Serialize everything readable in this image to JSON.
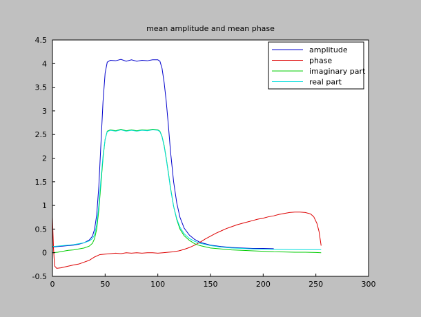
{
  "chart_data": {
    "type": "line",
    "title": "mean amplitude and mean phase",
    "xlabel": "",
    "ylabel": "",
    "xlim": [
      0,
      300
    ],
    "ylim": [
      -0.5,
      4.5
    ],
    "x_ticks": [
      0,
      50,
      100,
      150,
      200,
      250,
      300
    ],
    "y_ticks": [
      -0.5,
      0,
      0.5,
      1,
      1.5,
      2,
      2.5,
      3,
      3.5,
      4,
      4.5
    ],
    "x_tick_labels": [
      "0",
      "50",
      "100",
      "150",
      "200",
      "250",
      "300"
    ],
    "y_tick_labels": [
      "-0.5",
      "0",
      "0.5",
      "1",
      "1.5",
      "2",
      "2.5",
      "3",
      "3.5",
      "4",
      "4.5"
    ],
    "grid": false,
    "legend_position": "top-right",
    "series": [
      {
        "name": "amplitude",
        "color": "#0000cc",
        "points": [
          [
            0,
            0.12
          ],
          [
            5,
            0.13
          ],
          [
            10,
            0.14
          ],
          [
            15,
            0.15
          ],
          [
            20,
            0.16
          ],
          [
            25,
            0.18
          ],
          [
            30,
            0.21
          ],
          [
            35,
            0.27
          ],
          [
            38,
            0.35
          ],
          [
            40,
            0.5
          ],
          [
            42,
            0.8
          ],
          [
            44,
            1.4
          ],
          [
            46,
            2.3
          ],
          [
            48,
            3.2
          ],
          [
            50,
            3.8
          ],
          [
            52,
            4.03
          ],
          [
            55,
            4.07
          ],
          [
            60,
            4.06
          ],
          [
            65,
            4.09
          ],
          [
            70,
            4.05
          ],
          [
            75,
            4.08
          ],
          [
            80,
            4.05
          ],
          [
            85,
            4.07
          ],
          [
            90,
            4.06
          ],
          [
            95,
            4.08
          ],
          [
            100,
            4.08
          ],
          [
            102,
            4.05
          ],
          [
            104,
            3.9
          ],
          [
            106,
            3.6
          ],
          [
            108,
            3.2
          ],
          [
            110,
            2.7
          ],
          [
            112,
            2.15
          ],
          [
            115,
            1.5
          ],
          [
            118,
            1.05
          ],
          [
            121,
            0.75
          ],
          [
            125,
            0.52
          ],
          [
            130,
            0.37
          ],
          [
            135,
            0.28
          ],
          [
            140,
            0.22
          ],
          [
            150,
            0.16
          ],
          [
            160,
            0.13
          ],
          [
            170,
            0.11
          ],
          [
            180,
            0.1
          ],
          [
            190,
            0.09
          ],
          [
            200,
            0.09
          ],
          [
            210,
            0.085
          ]
        ]
      },
      {
        "name": "phase",
        "color": "#dd0000",
        "points": [
          [
            0,
            0.75
          ],
          [
            1,
            0.1
          ],
          [
            2,
            -0.28
          ],
          [
            4,
            -0.33
          ],
          [
            8,
            -0.32
          ],
          [
            12,
            -0.3
          ],
          [
            16,
            -0.28
          ],
          [
            20,
            -0.26
          ],
          [
            25,
            -0.24
          ],
          [
            30,
            -0.2
          ],
          [
            35,
            -0.16
          ],
          [
            40,
            -0.09
          ],
          [
            45,
            -0.04
          ],
          [
            50,
            -0.03
          ],
          [
            55,
            -0.02
          ],
          [
            60,
            -0.01
          ],
          [
            65,
            -0.02
          ],
          [
            70,
            0.0
          ],
          [
            75,
            -0.01
          ],
          [
            80,
            0.0
          ],
          [
            85,
            -0.01
          ],
          [
            90,
            0.0
          ],
          [
            95,
            0.0
          ],
          [
            100,
            -0.01
          ],
          [
            105,
            0.0
          ],
          [
            110,
            0.01
          ],
          [
            115,
            0.02
          ],
          [
            120,
            0.04
          ],
          [
            125,
            0.07
          ],
          [
            130,
            0.11
          ],
          [
            135,
            0.16
          ],
          [
            140,
            0.22
          ],
          [
            145,
            0.29
          ],
          [
            150,
            0.35
          ],
          [
            155,
            0.41
          ],
          [
            160,
            0.46
          ],
          [
            165,
            0.51
          ],
          [
            170,
            0.55
          ],
          [
            175,
            0.59
          ],
          [
            180,
            0.62
          ],
          [
            185,
            0.65
          ],
          [
            190,
            0.68
          ],
          [
            195,
            0.71
          ],
          [
            200,
            0.73
          ],
          [
            205,
            0.76
          ],
          [
            210,
            0.78
          ],
          [
            215,
            0.81
          ],
          [
            220,
            0.83
          ],
          [
            225,
            0.85
          ],
          [
            230,
            0.86
          ],
          [
            235,
            0.86
          ],
          [
            240,
            0.85
          ],
          [
            245,
            0.82
          ],
          [
            248,
            0.76
          ],
          [
            251,
            0.62
          ],
          [
            253,
            0.45
          ],
          [
            254,
            0.3
          ],
          [
            255,
            0.15
          ]
        ]
      },
      {
        "name": "imaginary part",
        "color": "#00cc00",
        "points": [
          [
            0,
            0.0
          ],
          [
            5,
            0.01
          ],
          [
            10,
            0.03
          ],
          [
            15,
            0.05
          ],
          [
            20,
            0.06
          ],
          [
            25,
            0.08
          ],
          [
            30,
            0.1
          ],
          [
            35,
            0.14
          ],
          [
            38,
            0.2
          ],
          [
            40,
            0.3
          ],
          [
            42,
            0.5
          ],
          [
            44,
            0.9
          ],
          [
            46,
            1.45
          ],
          [
            48,
            2.0
          ],
          [
            50,
            2.4
          ],
          [
            52,
            2.57
          ],
          [
            55,
            2.6
          ],
          [
            60,
            2.58
          ],
          [
            65,
            2.61
          ],
          [
            70,
            2.58
          ],
          [
            75,
            2.6
          ],
          [
            80,
            2.58
          ],
          [
            85,
            2.6
          ],
          [
            90,
            2.59
          ],
          [
            95,
            2.61
          ],
          [
            100,
            2.6
          ],
          [
            102,
            2.57
          ],
          [
            104,
            2.46
          ],
          [
            106,
            2.27
          ],
          [
            108,
            2.0
          ],
          [
            110,
            1.7
          ],
          [
            112,
            1.38
          ],
          [
            115,
            0.98
          ],
          [
            118,
            0.7
          ],
          [
            121,
            0.5
          ],
          [
            125,
            0.36
          ],
          [
            130,
            0.26
          ],
          [
            135,
            0.19
          ],
          [
            140,
            0.15
          ],
          [
            150,
            0.1
          ],
          [
            160,
            0.08
          ],
          [
            170,
            0.06
          ],
          [
            180,
            0.05
          ],
          [
            190,
            0.04
          ],
          [
            200,
            0.03
          ],
          [
            210,
            0.02
          ],
          [
            220,
            0.015
          ],
          [
            230,
            0.01
          ],
          [
            240,
            0.01
          ],
          [
            250,
            0.005
          ],
          [
            255,
            0.0
          ]
        ]
      },
      {
        "name": "real part",
        "color": "#00dddd",
        "points": [
          [
            0,
            0.13
          ],
          [
            5,
            0.14
          ],
          [
            10,
            0.15
          ],
          [
            15,
            0.16
          ],
          [
            20,
            0.17
          ],
          [
            25,
            0.19
          ],
          [
            30,
            0.21
          ],
          [
            35,
            0.25
          ],
          [
            38,
            0.3
          ],
          [
            40,
            0.38
          ],
          [
            42,
            0.6
          ],
          [
            44,
            1.0
          ],
          [
            46,
            1.55
          ],
          [
            48,
            2.05
          ],
          [
            50,
            2.4
          ],
          [
            52,
            2.56
          ],
          [
            55,
            2.59
          ],
          [
            60,
            2.57
          ],
          [
            65,
            2.6
          ],
          [
            70,
            2.57
          ],
          [
            75,
            2.59
          ],
          [
            80,
            2.57
          ],
          [
            85,
            2.59
          ],
          [
            90,
            2.58
          ],
          [
            95,
            2.6
          ],
          [
            100,
            2.59
          ],
          [
            102,
            2.56
          ],
          [
            104,
            2.45
          ],
          [
            106,
            2.25
          ],
          [
            108,
            1.98
          ],
          [
            110,
            1.68
          ],
          [
            112,
            1.36
          ],
          [
            115,
            0.98
          ],
          [
            118,
            0.72
          ],
          [
            121,
            0.54
          ],
          [
            125,
            0.4
          ],
          [
            130,
            0.3
          ],
          [
            135,
            0.24
          ],
          [
            140,
            0.2
          ],
          [
            150,
            0.15
          ],
          [
            160,
            0.12
          ],
          [
            170,
            0.1
          ],
          [
            180,
            0.09
          ],
          [
            190,
            0.08
          ],
          [
            200,
            0.075
          ],
          [
            210,
            0.07
          ],
          [
            220,
            0.068
          ],
          [
            230,
            0.066
          ],
          [
            240,
            0.065
          ],
          [
            250,
            0.065
          ],
          [
            255,
            0.065
          ]
        ]
      }
    ]
  }
}
